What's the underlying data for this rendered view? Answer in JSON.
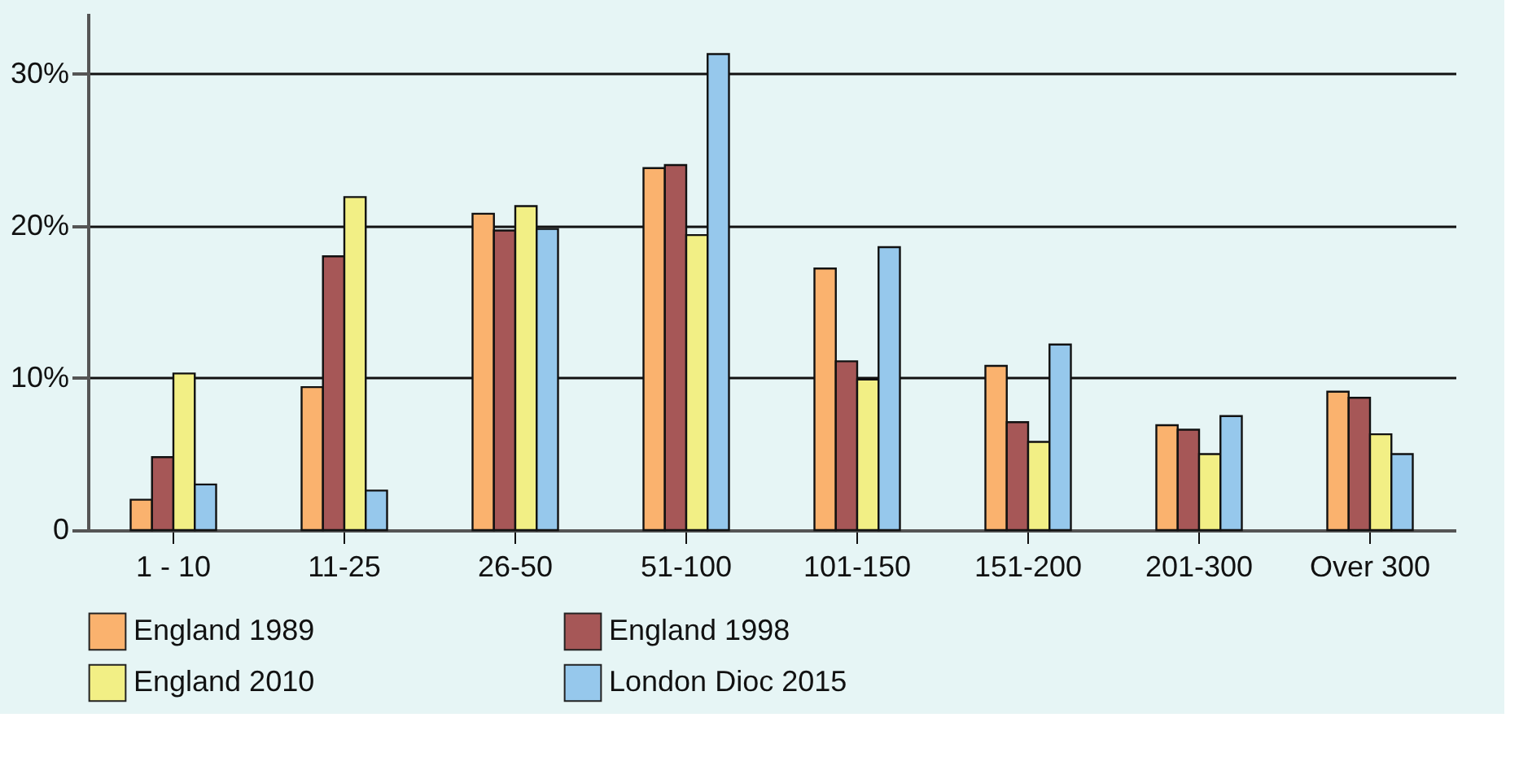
{
  "chart_data": {
    "type": "bar",
    "categories": [
      "1 - 10",
      "11-25",
      "26-50",
      "51-100",
      "101-150",
      "151-200",
      "201-300",
      "Over 300"
    ],
    "series": [
      {
        "name": "England 1989",
        "color": "#fab26e",
        "values": [
          2.0,
          9.4,
          20.8,
          23.8,
          17.2,
          10.8,
          6.9,
          9.1
        ]
      },
      {
        "name": "England 1998",
        "color": "#a65757",
        "values": [
          4.8,
          18.0,
          19.7,
          24.0,
          11.1,
          7.1,
          6.6,
          8.7
        ]
      },
      {
        "name": "England 2010",
        "color": "#f2ef85",
        "values": [
          10.3,
          21.9,
          21.3,
          19.4,
          9.9,
          5.8,
          5.0,
          6.3
        ]
      },
      {
        "name": "London Dioc 2015",
        "color": "#96c8ec",
        "values": [
          3.0,
          2.6,
          19.8,
          31.3,
          18.6,
          12.2,
          7.5,
          5.0
        ]
      }
    ],
    "ylim": [
      0,
      34
    ],
    "yticks": [
      0,
      {
        "value": 10,
        "label": "10%"
      },
      {
        "value": 20,
        "label": "20%"
      },
      {
        "value": 30,
        "label": "30%"
      }
    ],
    "grid": "y",
    "legend": "bottom"
  }
}
